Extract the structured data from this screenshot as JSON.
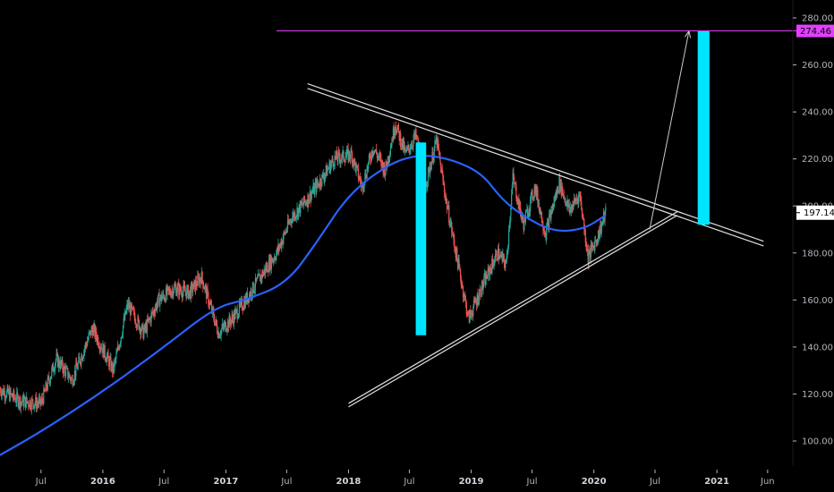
{
  "chart_data": {
    "type": "candlestick",
    "title": "",
    "colors": {
      "background": "#000000",
      "up": "#26a69a",
      "down": "#ef5350",
      "moving_average": "#2962ff",
      "target_line": "#e040fb",
      "target_badge": "#e040fb",
      "price_badge": "#ffffff",
      "measure_bar": "#00e5ff",
      "trendline": "#e0e0e0",
      "arrow": "#cccccc",
      "axis_text": "#b2b5be"
    },
    "y_axis": {
      "min": 92,
      "max": 282,
      "ticks": [
        100,
        120,
        140,
        160,
        180,
        200,
        220,
        240,
        260,
        280
      ],
      "tick_labels": [
        "100.00",
        "120.00",
        "140.00",
        "160.00",
        "180.00",
        "200.00",
        "220.00",
        "240.00",
        "260.00",
        "280.00"
      ]
    },
    "x_axis": {
      "start": "2015-03-01",
      "end": "2021-08-15",
      "ticks": [
        {
          "date": "2015-07-01",
          "label": "Jul",
          "year": false
        },
        {
          "date": "2016-01-01",
          "label": "2016",
          "year": true
        },
        {
          "date": "2016-07-01",
          "label": "Jul",
          "year": false
        },
        {
          "date": "2017-01-01",
          "label": "2017",
          "year": true
        },
        {
          "date": "2017-07-01",
          "label": "Jul",
          "year": false
        },
        {
          "date": "2018-01-01",
          "label": "2018",
          "year": true
        },
        {
          "date": "2018-07-01",
          "label": "Jul",
          "year": false
        },
        {
          "date": "2019-01-01",
          "label": "2019",
          "year": true
        },
        {
          "date": "2019-07-01",
          "label": "Jul",
          "year": false
        },
        {
          "date": "2020-01-01",
          "label": "2020",
          "year": true
        },
        {
          "date": "2020-07-01",
          "label": "Jul",
          "year": false
        },
        {
          "date": "2021-01-01",
          "label": "2021",
          "year": true
        },
        {
          "date": "2021-06-01",
          "label": "Jun",
          "year": false
        }
      ]
    },
    "price_path": [
      [
        "2015-03-01",
        122
      ],
      [
        "2015-05-01",
        117
      ],
      [
        "2015-07-01",
        116
      ],
      [
        "2015-08-15",
        135
      ],
      [
        "2015-10-01",
        126
      ],
      [
        "2015-12-01",
        148
      ],
      [
        "2016-02-01",
        130
      ],
      [
        "2016-03-15",
        158
      ],
      [
        "2016-05-01",
        146
      ],
      [
        "2016-06-15",
        160
      ],
      [
        "2016-08-01",
        165
      ],
      [
        "2016-09-15",
        163
      ],
      [
        "2016-10-20",
        170
      ],
      [
        "2016-12-10",
        146
      ],
      [
        "2017-01-20",
        152
      ],
      [
        "2017-03-01",
        160
      ],
      [
        "2017-04-15",
        170
      ],
      [
        "2017-06-01",
        180
      ],
      [
        "2017-07-15",
        195
      ],
      [
        "2017-09-01",
        203
      ],
      [
        "2017-10-15",
        212
      ],
      [
        "2017-11-20",
        220
      ],
      [
        "2018-01-10",
        222
      ],
      [
        "2018-02-10",
        208
      ],
      [
        "2018-03-15",
        225
      ],
      [
        "2018-04-20",
        215
      ],
      [
        "2018-05-20",
        235
      ],
      [
        "2018-06-20",
        222
      ],
      [
        "2018-07-20",
        230
      ],
      [
        "2018-08-20",
        210
      ],
      [
        "2018-09-20",
        228
      ],
      [
        "2018-10-15",
        205
      ],
      [
        "2018-11-10",
        185
      ],
      [
        "2018-12-24",
        152
      ],
      [
        "2019-02-01",
        165
      ],
      [
        "2019-03-20",
        180
      ],
      [
        "2019-04-15",
        175
      ],
      [
        "2019-05-05",
        212
      ],
      [
        "2019-06-05",
        192
      ],
      [
        "2019-07-10",
        208
      ],
      [
        "2019-08-10",
        188
      ],
      [
        "2019-09-20",
        210
      ],
      [
        "2019-10-20",
        198
      ],
      [
        "2019-11-20",
        205
      ],
      [
        "2019-12-15",
        178
      ],
      [
        "2020-01-15",
        188
      ],
      [
        "2020-02-05",
        197.14
      ]
    ],
    "moving_average": [
      [
        "2015-03-01",
        94
      ],
      [
        "2015-07-01",
        104
      ],
      [
        "2016-01-01",
        121
      ],
      [
        "2016-07-01",
        140
      ],
      [
        "2016-12-01",
        157
      ],
      [
        "2017-03-01",
        160
      ],
      [
        "2017-07-01",
        167
      ],
      [
        "2017-10-01",
        185
      ],
      [
        "2018-01-01",
        205
      ],
      [
        "2018-05-01",
        218
      ],
      [
        "2018-08-01",
        222
      ],
      [
        "2018-11-01",
        220
      ],
      [
        "2019-02-01",
        214
      ],
      [
        "2019-04-01",
        203
      ],
      [
        "2019-06-01",
        196
      ],
      [
        "2019-09-01",
        189
      ],
      [
        "2019-12-01",
        190
      ],
      [
        "2020-02-05",
        196
      ]
    ],
    "trendlines": [
      {
        "name": "upper",
        "points": [
          [
            "2017-09-01",
            252
          ],
          [
            "2021-05-20",
            185
          ]
        ]
      },
      {
        "name": "upper",
        "points": [
          [
            "2017-09-01",
            250
          ],
          [
            "2021-05-20",
            183
          ]
        ]
      },
      {
        "name": "lower",
        "points": [
          [
            "2018-01-01",
            116
          ],
          [
            "2020-09-05",
            197.5
          ]
        ]
      },
      {
        "name": "lower",
        "points": [
          [
            "2018-01-01",
            114.5
          ],
          [
            "2020-09-05",
            196
          ]
        ]
      }
    ],
    "arrow": {
      "from": [
        "2020-06-15",
        190
      ],
      "to": [
        "2020-10-10",
        274.46
      ]
    },
    "measure_bars": [
      {
        "from": [
          "2018-07-20",
          145
        ],
        "to": [
          "2018-08-20",
          227
        ]
      },
      {
        "from": [
          "2020-11-05",
          192
        ],
        "to": [
          "2020-12-10",
          274.46
        ]
      }
    ],
    "target_line": {
      "value": 274.46,
      "start": "2017-06-01"
    },
    "last_price": 197.14,
    "badges": {
      "target_label": "274.46",
      "last_price_label": "197.14"
    }
  }
}
